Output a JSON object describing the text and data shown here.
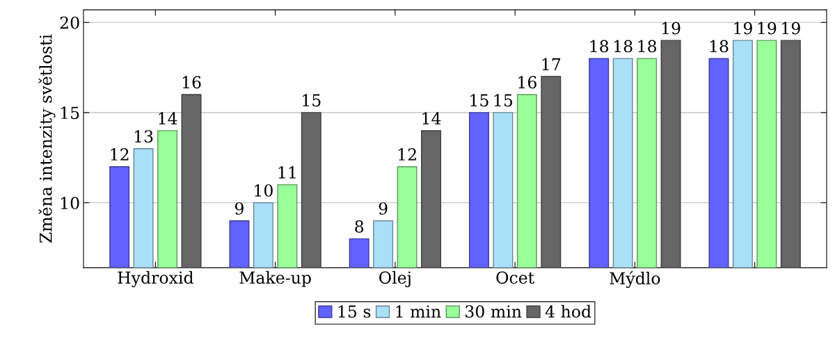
{
  "chart_data": {
    "type": "bar",
    "ylabel": "Změna intenzity světlosti",
    "categories": [
      "Hydroxid",
      "Make-up",
      "Olej",
      "Ocet",
      "Mýdlo",
      null
    ],
    "series": [
      {
        "name": "15 s",
        "color": "#6262ff",
        "values": [
          12,
          9,
          8,
          15,
          18,
          18
        ]
      },
      {
        "name": "1 min",
        "color": "#aadff8",
        "values": [
          13,
          10,
          9,
          15,
          18,
          19
        ]
      },
      {
        "name": "30 min",
        "color": "#99ff99",
        "values": [
          14,
          11,
          12,
          16,
          18,
          19
        ]
      },
      {
        "name": "4 hod",
        "color": "#666666",
        "values": [
          16,
          15,
          14,
          17,
          19,
          19
        ]
      }
    ],
    "ylim": [
      6.4,
      20.7
    ],
    "yticks": [
      10,
      15,
      20
    ],
    "grid": "y",
    "legend": "bottom",
    "data_labels": true
  }
}
